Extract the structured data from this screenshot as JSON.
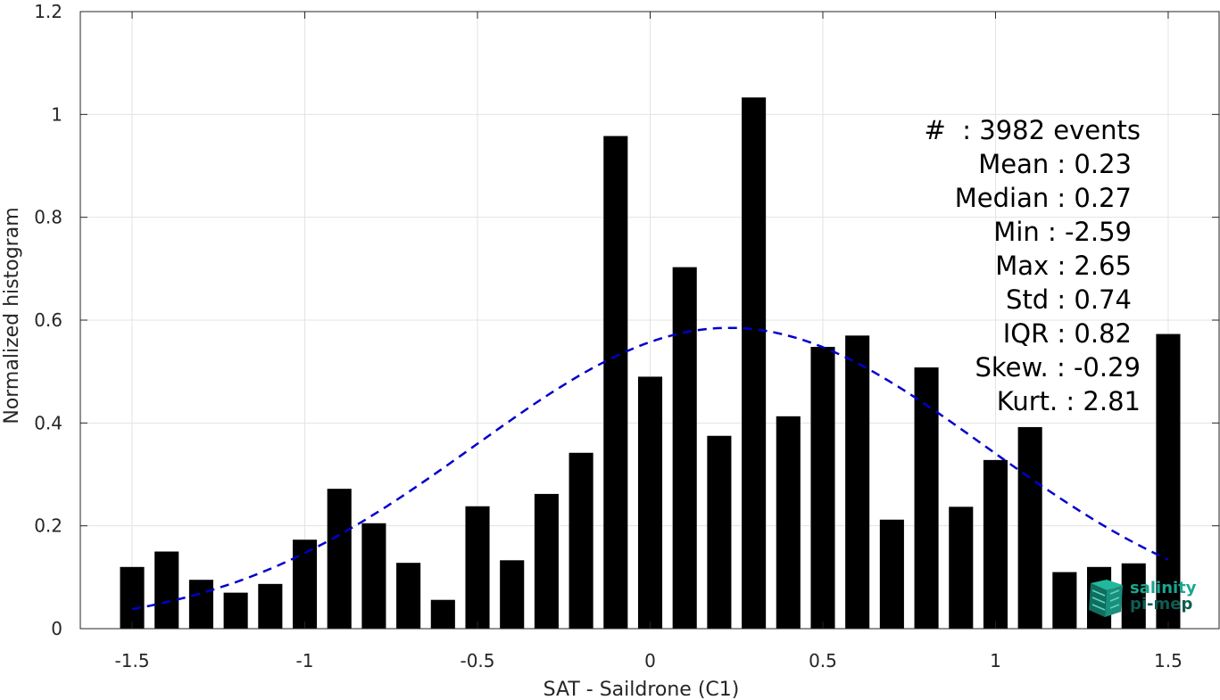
{
  "chart_data": {
    "type": "bar",
    "xlabel": "SAT - Saildrone (C1)",
    "ylabel": "Normalized histogram",
    "xlim": [
      -1.65,
      1.65
    ],
    "ylim": [
      0,
      1.2
    ],
    "grid": true,
    "x_ticks": [
      -1.5,
      -1,
      -0.5,
      0,
      0.5,
      1,
      1.5
    ],
    "x_tick_labels": [
      "-1.5",
      "-1",
      "-0.5",
      "0",
      "0.5",
      "1",
      "1.5"
    ],
    "y_ticks": [
      0,
      0.2,
      0.4,
      0.6,
      0.8,
      1,
      1.2
    ],
    "y_tick_labels": [
      "0",
      "0.2",
      "0.4",
      "0.6",
      "0.8",
      "1",
      "1.2"
    ],
    "bar_width": 0.07,
    "bar_color": "#000000",
    "x": [
      -1.5,
      -1.4,
      -1.3,
      -1.2,
      -1.1,
      -1.0,
      -0.9,
      -0.8,
      -0.7,
      -0.6,
      -0.5,
      -0.4,
      -0.3,
      -0.2,
      -0.1,
      0.0,
      0.1,
      0.2,
      0.3,
      0.4,
      0.5,
      0.6,
      0.7,
      0.8,
      0.9,
      1.0,
      1.1,
      1.2,
      1.3,
      1.4,
      1.5
    ],
    "values": [
      0.12,
      0.15,
      0.095,
      0.07,
      0.087,
      0.173,
      0.272,
      0.205,
      0.128,
      0.056,
      0.238,
      0.133,
      0.262,
      0.342,
      0.958,
      0.49,
      0.703,
      0.375,
      1.033,
      0.413,
      0.548,
      0.57,
      0.212,
      0.508,
      0.237,
      0.328,
      0.392,
      0.11,
      0.12,
      0.127,
      0.573
    ],
    "fit_curve": {
      "type": "gaussian",
      "mean": 0.23,
      "std": 0.74,
      "peak": 0.585,
      "x_range": [
        -1.5,
        1.5
      ],
      "color": "#0000cc",
      "style": "dashed"
    },
    "stats_lines": [
      "#  : 3982 events",
      "Mean : 0.23",
      "Median : 0.27",
      "Min : -2.59",
      "Max : 2.65",
      "Std : 0.74",
      "IQR : 0.82",
      "Skew. : -0.29",
      "Kurt. : 2.81"
    ]
  },
  "logo": {
    "line1": "salinity",
    "line2": "pi-mep",
    "color": "#1aa68f",
    "dark_color": "#0f5c52"
  }
}
